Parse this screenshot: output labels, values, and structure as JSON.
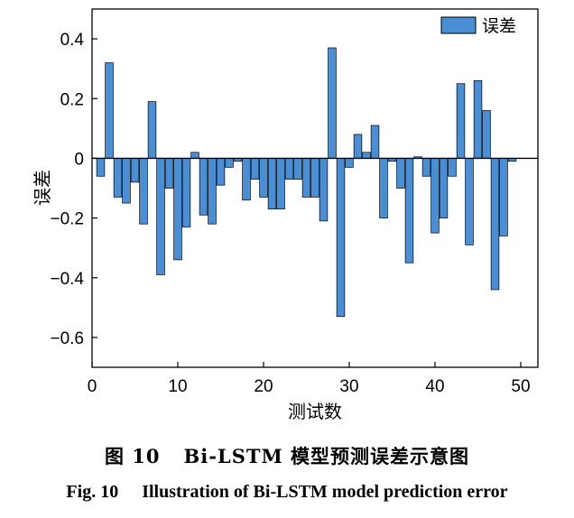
{
  "chart_data": {
    "type": "bar",
    "xlabel": "测试数",
    "ylabel": "误差",
    "xlim": [
      0,
      52
    ],
    "ylim": [
      -0.7,
      0.5
    ],
    "xticks": [
      0,
      10,
      20,
      30,
      40,
      50
    ],
    "yticks": [
      0.4,
      0.2,
      0,
      -0.2,
      -0.4,
      -0.6
    ],
    "xtick_labels": [
      "0",
      "10",
      "20",
      "30",
      "40",
      "50"
    ],
    "ytick_labels": [
      "0.4",
      "0.2",
      "0",
      "−0.2",
      "−0.4",
      "−0.6"
    ],
    "legend": "top-right",
    "series": [
      {
        "name": "误差",
        "color": "#4a8fd6",
        "x": [
          1,
          2,
          3,
          4,
          5,
          6,
          7,
          8,
          9,
          10,
          11,
          12,
          13,
          14,
          15,
          16,
          17,
          18,
          19,
          20,
          21,
          22,
          23,
          24,
          25,
          26,
          27,
          28,
          29,
          30,
          31,
          32,
          33,
          34,
          35,
          36,
          37,
          38,
          39,
          40,
          41,
          42,
          43,
          44,
          45,
          46,
          47,
          48,
          49
        ],
        "values": [
          -0.06,
          0.32,
          -0.13,
          -0.15,
          -0.08,
          -0.22,
          0.19,
          -0.39,
          -0.1,
          -0.34,
          -0.23,
          0.02,
          -0.19,
          -0.22,
          -0.09,
          -0.03,
          -0.01,
          -0.14,
          -0.07,
          -0.13,
          -0.17,
          -0.17,
          -0.07,
          -0.07,
          -0.13,
          -0.13,
          -0.21,
          0.37,
          -0.53,
          -0.03,
          0.08,
          0.02,
          0.11,
          -0.2,
          -0.01,
          -0.1,
          -0.35,
          0.005,
          -0.06,
          -0.25,
          -0.2,
          -0.06,
          0.25,
          -0.29,
          0.26,
          0.16,
          -0.44,
          -0.26,
          -0.01
        ]
      }
    ]
  },
  "caption": {
    "zh_fig": "图 10",
    "zh_text": "Bi-LSTM 模型预测误差示意图",
    "en_fig": "Fig. 10",
    "en_text": "Illustration of Bi-LSTM model prediction error"
  }
}
